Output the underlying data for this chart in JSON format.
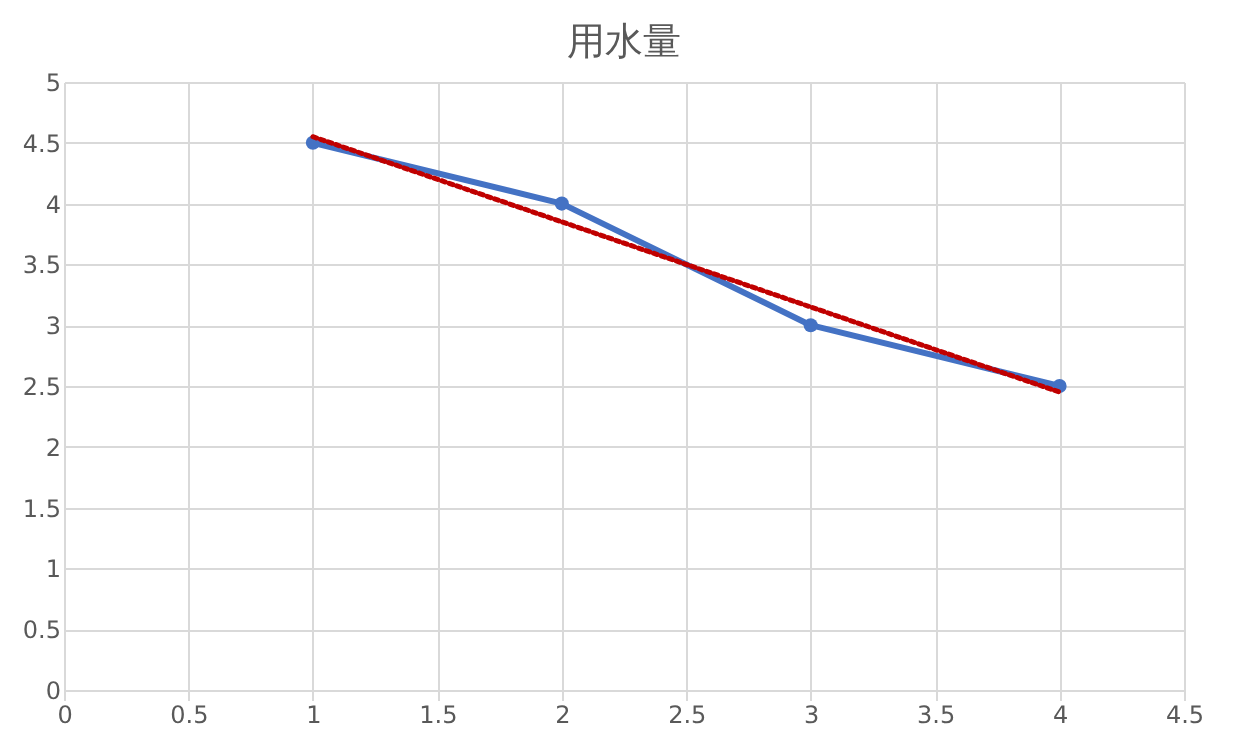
{
  "chart_data": {
    "type": "line",
    "title": "用水量",
    "xlim": [
      0,
      4.5
    ],
    "xticks": [
      0,
      0.5,
      1,
      1.5,
      2,
      2.5,
      3,
      3.5,
      4,
      4.5
    ],
    "ylim": [
      0,
      5
    ],
    "yticks": [
      0,
      0.5,
      1,
      1.5,
      2,
      2.5,
      3,
      3.5,
      4,
      4.5,
      5
    ],
    "grid": true,
    "series": [
      {
        "x": [
          1,
          2,
          3,
          4
        ],
        "values": [
          4.5,
          4,
          3,
          2.5
        ],
        "color": "#4472c4",
        "marker": "circle",
        "line_style": "solid"
      },
      {
        "type": "line",
        "x": [
          1,
          4
        ],
        "values": [
          4.55,
          2.45
        ],
        "color": "#c00000",
        "marker": "none",
        "line_style": "dotted"
      }
    ]
  }
}
